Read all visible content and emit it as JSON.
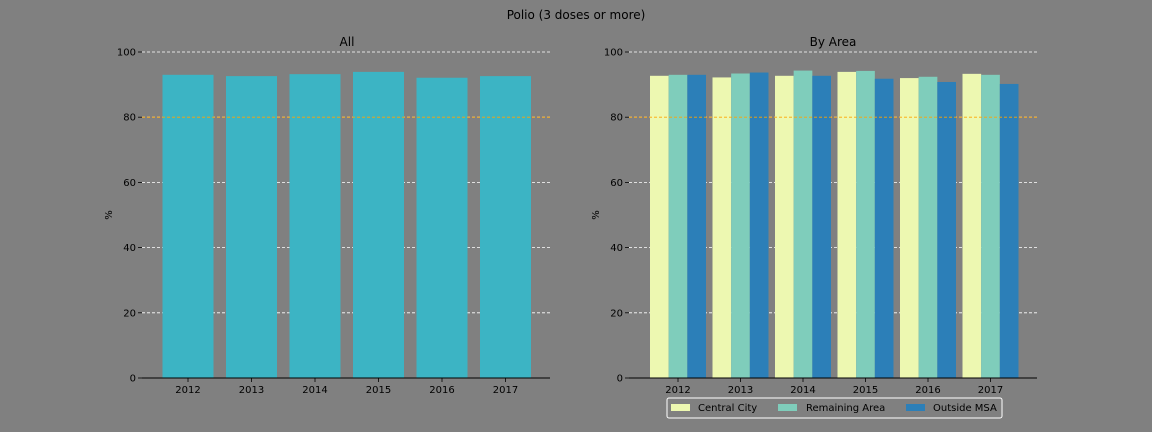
{
  "figure": {
    "suptitle": "Polio (3 doses or more)",
    "background": "#808080"
  },
  "chart_data": [
    {
      "type": "bar",
      "title": "All",
      "xlabel": "",
      "ylabel": "%",
      "categories": [
        "2012",
        "2013",
        "2014",
        "2015",
        "2016",
        "2017"
      ],
      "values": [
        93.0,
        92.6,
        93.2,
        93.9,
        92.1,
        92.6
      ],
      "ylim": [
        0,
        100
      ],
      "yticks": [
        0,
        20,
        40,
        60,
        80,
        100
      ],
      "grid": true,
      "reference_line": {
        "value": 80,
        "color": "#ffa500"
      },
      "bar_color": "#3cb4c4"
    },
    {
      "type": "bar",
      "title": "By Area",
      "xlabel": "",
      "ylabel": "%",
      "categories": [
        "2012",
        "2013",
        "2014",
        "2015",
        "2016",
        "2017"
      ],
      "series": [
        {
          "name": "Central City",
          "color": "#edf8b1",
          "values": [
            92.7,
            92.2,
            92.7,
            93.9,
            92.0,
            93.3
          ]
        },
        {
          "name": "Remaining Area",
          "color": "#7fcdbb",
          "values": [
            93.0,
            93.4,
            94.3,
            94.2,
            92.4,
            93.0
          ]
        },
        {
          "name": "Outside MSA",
          "color": "#2c7fb8",
          "values": [
            93.0,
            93.7,
            92.7,
            91.8,
            90.8,
            90.2
          ]
        }
      ],
      "ylim": [
        0,
        100
      ],
      "yticks": [
        0,
        20,
        40,
        60,
        80,
        100
      ],
      "grid": true,
      "reference_line": {
        "value": 80,
        "color": "#ffa500"
      },
      "legend": {
        "placement": "bottom-center",
        "entries": [
          "Central City",
          "Remaining Area",
          "Outside MSA"
        ]
      }
    }
  ]
}
